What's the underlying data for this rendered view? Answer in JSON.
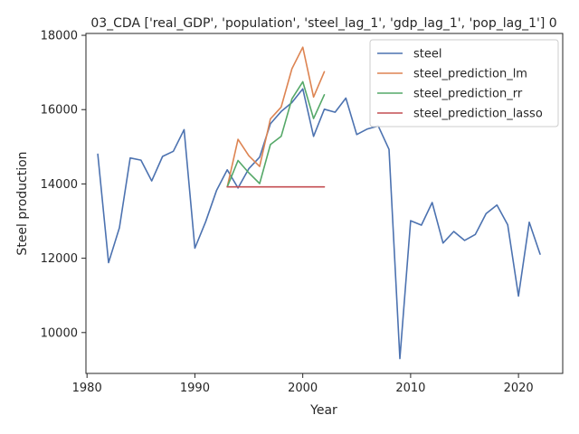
{
  "chart_data": {
    "type": "line",
    "title": "03_CDA ['real_GDP', 'population', 'steel_lag_1', 'gdp_lag_1', 'pop_lag_1'] 0",
    "xlabel": "Year",
    "ylabel": "Steel production",
    "xlim": [
      1979.9,
      2024.1
    ],
    "ylim": [
      8900,
      18050
    ],
    "xticks": [
      1980,
      1990,
      2000,
      2010,
      2020
    ],
    "xtick_labels": [
      "1980",
      "1990",
      "2000",
      "2010",
      "2020"
    ],
    "yticks": [
      10000,
      12000,
      14000,
      16000,
      18000
    ],
    "ytick_labels": [
      "10000",
      "12000",
      "14000",
      "16000",
      "18000"
    ],
    "grid": false,
    "legend_position": "top-right",
    "series": [
      {
        "name": "steel",
        "color": "#4c72b0",
        "x": [
          1981,
          1982,
          1983,
          1984,
          1985,
          1986,
          1987,
          1988,
          1989,
          1990,
          1991,
          1992,
          1993,
          1994,
          1995,
          1996,
          1997,
          1998,
          1999,
          2000,
          2001,
          2002,
          2003,
          2004,
          2005,
          2006,
          2007,
          2008,
          2009,
          2010,
          2011,
          2012,
          2013,
          2014,
          2015,
          2016,
          2017,
          2018,
          2019,
          2020,
          2021,
          2022
        ],
        "y": [
          14800,
          11880,
          12820,
          14700,
          14640,
          14080,
          14740,
          14880,
          15460,
          12270,
          12980,
          13820,
          14380,
          13890,
          14410,
          14720,
          15620,
          15950,
          16190,
          16560,
          15280,
          16010,
          15930,
          16310,
          15330,
          15480,
          15560,
          14930,
          9300,
          13010,
          12890,
          13500,
          12410,
          12720,
          12480,
          12640,
          13200,
          13430,
          12900,
          10980,
          12970,
          12110
        ]
      },
      {
        "name": "steel_prediction_lm",
        "color": "#dd8452",
        "x": [
          1993,
          1994,
          1995,
          1996,
          1997,
          1998,
          1999,
          2000,
          2001,
          2002
        ],
        "y": [
          13920,
          15200,
          14760,
          14470,
          15750,
          16070,
          17100,
          17680,
          16340,
          17020
        ]
      },
      {
        "name": "steel_prediction_rr",
        "color": "#55a868",
        "x": [
          1993,
          1994,
          1995,
          1996,
          1997,
          1998,
          1999,
          2000,
          2001,
          2002
        ],
        "y": [
          13920,
          14630,
          14300,
          14010,
          15060,
          15280,
          16290,
          16750,
          15760,
          16400
        ]
      },
      {
        "name": "steel_prediction_lasso",
        "color": "#c44e52",
        "x": [
          1993,
          1994,
          1995,
          1996,
          1997,
          1998,
          1999,
          2000,
          2001,
          2002
        ],
        "y": [
          13920,
          13920,
          13920,
          13920,
          13920,
          13920,
          13920,
          13920,
          13920,
          13920
        ]
      }
    ]
  }
}
